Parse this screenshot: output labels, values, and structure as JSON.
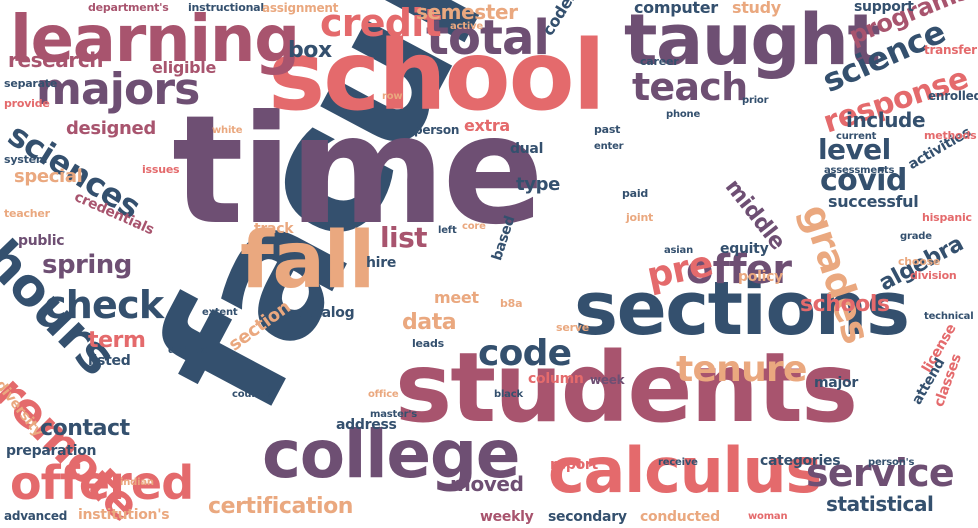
{
  "palette": {
    "navy": "#34506e",
    "purple": "#6e4f73",
    "mauve": "#a8546e",
    "coral": "#e46a6c",
    "peach": "#eaa87f"
  },
  "words": [
    {
      "text": "faculty",
      "color": "navy"
    },
    {
      "text": "time",
      "color": "purple"
    },
    {
      "text": "school",
      "color": "coral"
    },
    {
      "text": "students",
      "color": "mauve"
    },
    {
      "text": "sections",
      "color": "navy"
    },
    {
      "text": "college",
      "color": "purple"
    },
    {
      "text": "taught",
      "color": "purple"
    },
    {
      "text": "calculus",
      "color": "coral"
    },
    {
      "text": "fall",
      "color": "peach"
    },
    {
      "text": "learning",
      "color": "mauve"
    },
    {
      "text": "hours",
      "color": "navy"
    },
    {
      "text": "remote",
      "color": "coral"
    },
    {
      "text": "offered",
      "color": "coral"
    },
    {
      "text": "total",
      "color": "purple"
    },
    {
      "text": "majors",
      "color": "purple"
    },
    {
      "text": "credit",
      "color": "coral"
    },
    {
      "text": "teach",
      "color": "purple"
    },
    {
      "text": "offer",
      "color": "purple"
    },
    {
      "text": "code",
      "color": "navy"
    },
    {
      "text": "service",
      "color": "purple"
    },
    {
      "text": "check",
      "color": "navy"
    },
    {
      "text": "grades",
      "color": "peach"
    },
    {
      "text": "tenure",
      "color": "peach"
    },
    {
      "text": "covid",
      "color": "navy"
    },
    {
      "text": "science",
      "color": "navy"
    },
    {
      "text": "response",
      "color": "coral"
    },
    {
      "text": "sciences",
      "color": "navy"
    },
    {
      "text": "pre",
      "color": "coral"
    },
    {
      "text": "spring",
      "color": "purple"
    },
    {
      "text": "level",
      "color": "navy"
    },
    {
      "text": "list",
      "color": "mauve"
    },
    {
      "text": "certification",
      "color": "peach"
    },
    {
      "text": "programs",
      "color": "mauve"
    },
    {
      "text": "semester",
      "color": "peach"
    },
    {
      "text": "research",
      "color": "mauve"
    },
    {
      "text": "data",
      "color": "peach"
    },
    {
      "text": "contact",
      "color": "navy"
    },
    {
      "text": "box",
      "color": "navy"
    },
    {
      "text": "term",
      "color": "coral"
    },
    {
      "text": "middle",
      "color": "purple"
    },
    {
      "text": "algebra",
      "color": "navy"
    },
    {
      "text": "schools",
      "color": "coral"
    },
    {
      "text": "statistical",
      "color": "navy"
    },
    {
      "text": "moved",
      "color": "purple"
    },
    {
      "text": "include",
      "color": "navy"
    },
    {
      "text": "designed",
      "color": "mauve"
    },
    {
      "text": "special",
      "color": "peach"
    },
    {
      "text": "type",
      "color": "navy"
    },
    {
      "text": "successful",
      "color": "navy"
    },
    {
      "text": "meet",
      "color": "peach"
    },
    {
      "text": "eligible",
      "color": "mauve"
    },
    {
      "text": "section",
      "color": "peach"
    },
    {
      "text": "extra",
      "color": "coral"
    },
    {
      "text": "computer",
      "color": "navy"
    },
    {
      "text": "study",
      "color": "peach"
    },
    {
      "text": "codes",
      "color": "navy"
    },
    {
      "text": "support",
      "color": "navy"
    },
    {
      "text": "track",
      "color": "peach"
    },
    {
      "text": "hire",
      "color": "navy"
    },
    {
      "text": "equity",
      "color": "navy"
    },
    {
      "text": "policy",
      "color": "peach"
    },
    {
      "text": "major",
      "color": "navy"
    },
    {
      "text": "license",
      "color": "coral"
    },
    {
      "text": "attend",
      "color": "navy"
    },
    {
      "text": "classes",
      "color": "coral"
    },
    {
      "text": "address",
      "color": "navy"
    },
    {
      "text": "credentials",
      "color": "mauve"
    },
    {
      "text": "public",
      "color": "purple"
    },
    {
      "text": "diversity",
      "color": "peach"
    },
    {
      "text": "preparation",
      "color": "navy"
    },
    {
      "text": "listed",
      "color": "navy"
    },
    {
      "text": "institution's",
      "color": "peach"
    },
    {
      "text": "advanced",
      "color": "navy"
    },
    {
      "text": "weekly",
      "color": "mauve"
    },
    {
      "text": "secondary",
      "color": "navy"
    },
    {
      "text": "conducted",
      "color": "peach"
    },
    {
      "text": "categories",
      "color": "navy"
    },
    {
      "text": "report",
      "color": "coral"
    },
    {
      "text": "column",
      "color": "coral"
    },
    {
      "text": "week",
      "color": "purple"
    },
    {
      "text": "dual",
      "color": "navy"
    },
    {
      "text": "based",
      "color": "navy"
    },
    {
      "text": "catalog",
      "color": "navy"
    },
    {
      "text": "person",
      "color": "navy"
    },
    {
      "text": "activities",
      "color": "navy"
    },
    {
      "text": "enrolled",
      "color": "navy"
    },
    {
      "text": "transfer",
      "color": "coral"
    },
    {
      "text": "career",
      "color": "navy"
    },
    {
      "text": "department's",
      "color": "mauve"
    },
    {
      "text": "instructional",
      "color": "navy"
    },
    {
      "text": "assignment",
      "color": "peach"
    },
    {
      "text": "active",
      "color": "peach"
    },
    {
      "text": "separate",
      "color": "navy"
    },
    {
      "text": "provide",
      "color": "coral"
    },
    {
      "text": "system",
      "color": "navy"
    },
    {
      "text": "teacher",
      "color": "peach"
    },
    {
      "text": "issues",
      "color": "coral"
    },
    {
      "text": "row",
      "color": "peach"
    },
    {
      "text": "white",
      "color": "peach"
    },
    {
      "text": "phone",
      "color": "navy"
    },
    {
      "text": "prior",
      "color": "navy"
    },
    {
      "text": "past",
      "color": "navy"
    },
    {
      "text": "enter",
      "color": "navy"
    },
    {
      "text": "paid",
      "color": "navy"
    },
    {
      "text": "current",
      "color": "navy"
    },
    {
      "text": "methods",
      "color": "coral"
    },
    {
      "text": "assessments",
      "color": "navy"
    },
    {
      "text": "hispanic",
      "color": "coral"
    },
    {
      "text": "grade",
      "color": "navy"
    },
    {
      "text": "choose",
      "color": "peach"
    },
    {
      "text": "division",
      "color": "coral"
    },
    {
      "text": "technical",
      "color": "navy"
    },
    {
      "text": "asian",
      "color": "navy"
    },
    {
      "text": "joint",
      "color": "peach"
    },
    {
      "text": "core",
      "color": "peach"
    },
    {
      "text": "left",
      "color": "navy"
    },
    {
      "text": "b8a",
      "color": "peach"
    },
    {
      "text": "extent",
      "color": "navy"
    },
    {
      "text": "defined",
      "color": "navy"
    },
    {
      "text": "leads",
      "color": "navy"
    },
    {
      "text": "serve",
      "color": "peach"
    },
    {
      "text": "black",
      "color": "navy"
    },
    {
      "text": "office",
      "color": "peach"
    },
    {
      "text": "counted",
      "color": "navy"
    },
    {
      "text": "master's",
      "color": "navy"
    },
    {
      "text": "indian",
      "color": "peach"
    },
    {
      "text": "receive",
      "color": "navy"
    },
    {
      "text": "woman",
      "color": "coral"
    },
    {
      "text": "person's",
      "color": "navy"
    }
  ]
}
